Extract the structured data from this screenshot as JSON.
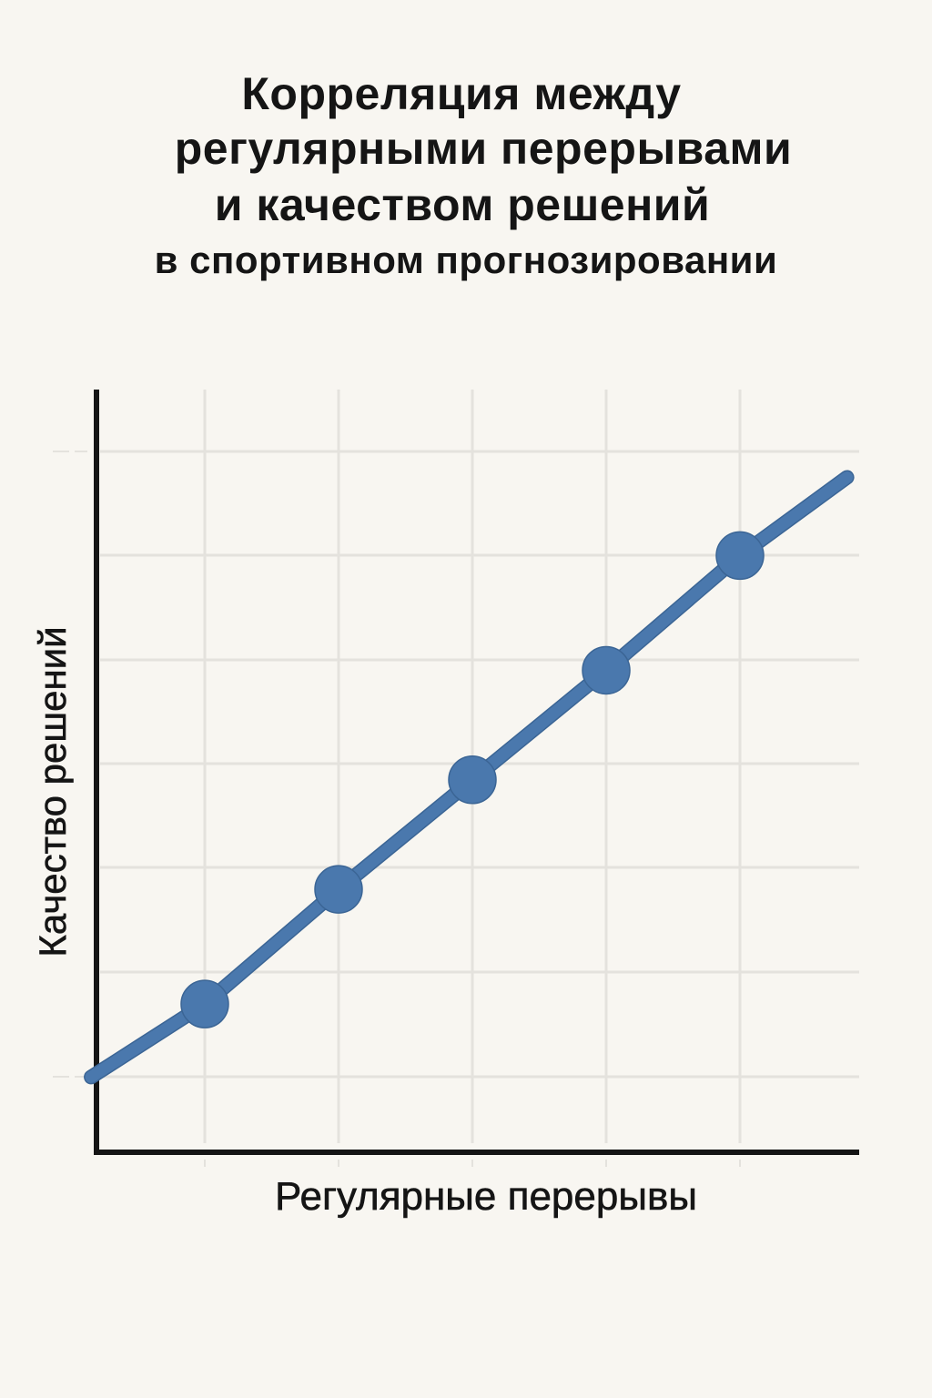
{
  "title": {
    "lines": [
      "Корреляция между",
      "регулярными перерывами",
      "и качеством решений",
      "в спортивном прогнозировании"
    ]
  },
  "colors": {
    "background": "#f8f6f1",
    "series": "#4a78ad",
    "series_outline": "#3b6595",
    "axis": "#151515",
    "grid": "#e4e2dd"
  },
  "chart_data": {
    "type": "line",
    "title": "Корреляция между регулярными перерывами и качеством решений в спортивном прогнозировании",
    "xlabel": "Регулярные перерывы",
    "ylabel": "Качество решений",
    "x": [
      1,
      2,
      3,
      4,
      5
    ],
    "series": [
      {
        "name": "Качество решений",
        "values": [
          1.7,
          2.8,
          3.85,
          4.9,
          6.0
        ],
        "line_extends": {
          "start": [
            0.15,
            1.0
          ],
          "end": [
            5.8,
            6.75
          ]
        },
        "markers": true
      }
    ],
    "xlim": [
      -0.8,
      4.9
    ],
    "ylim": [
      0,
      7
    ],
    "tick_labels_shown": false,
    "grid": true,
    "legend": null
  }
}
